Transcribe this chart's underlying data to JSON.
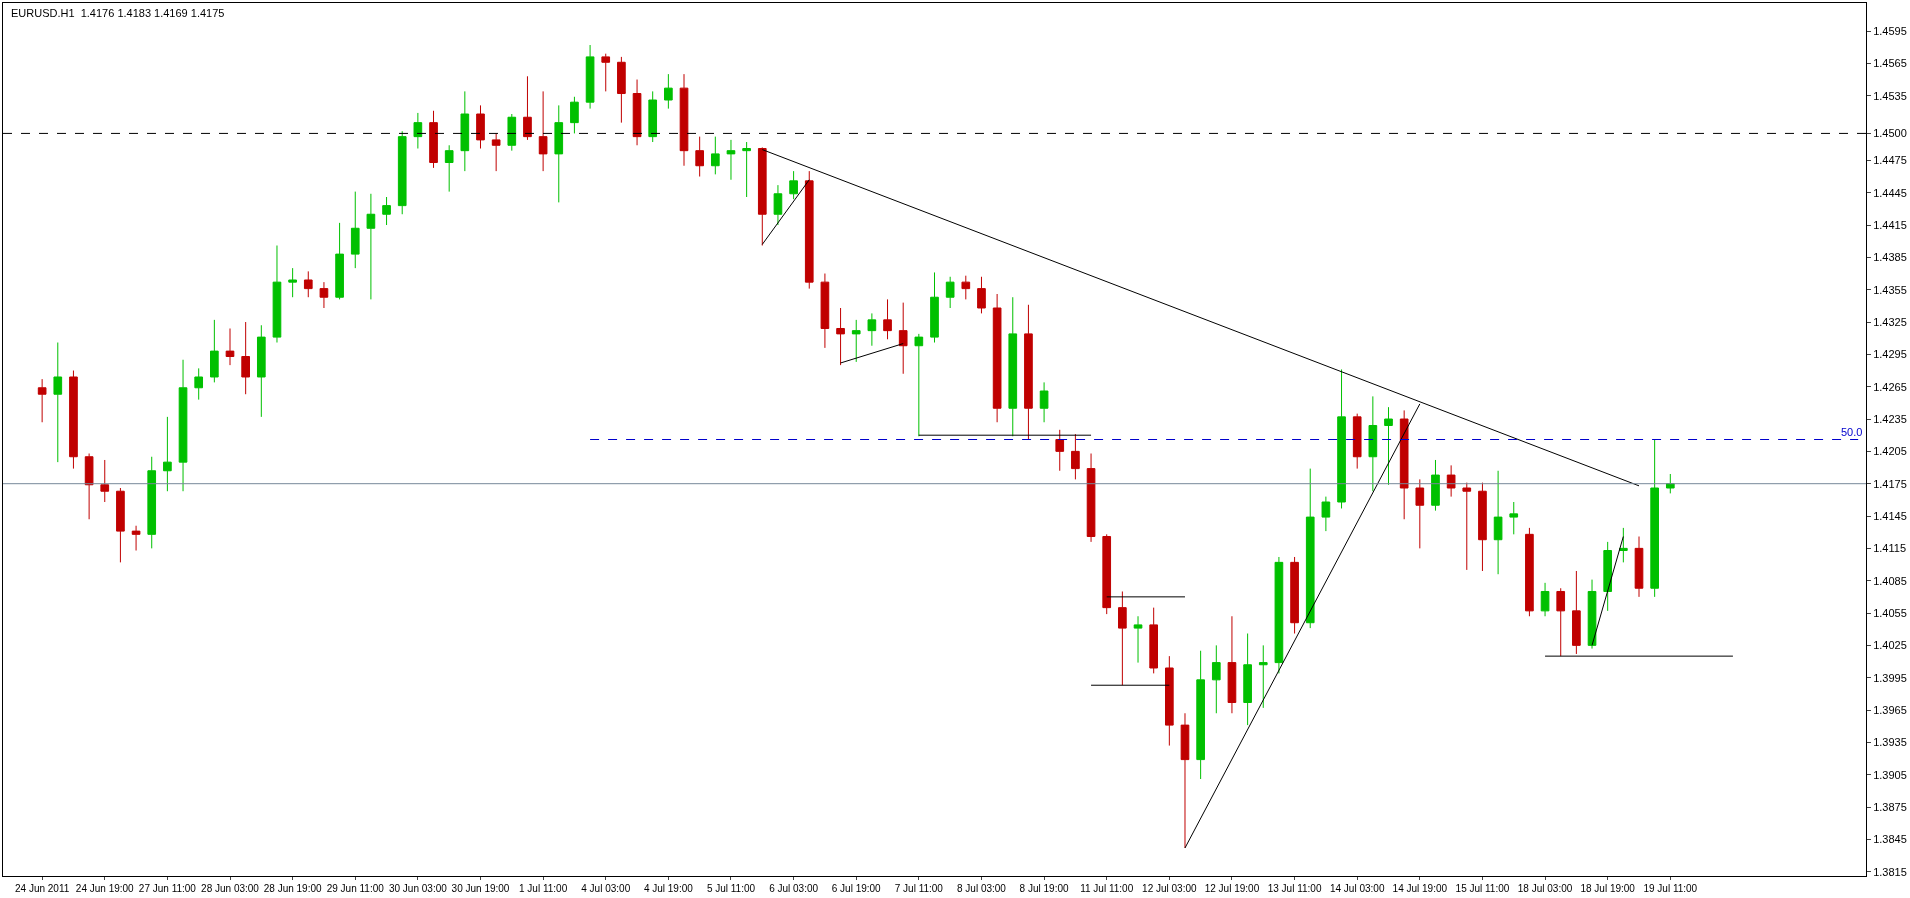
{
  "chart_data": {
    "type": "candlestick",
    "title": "EURUSD.H1  1.4176 1.4183 1.4169 1.4175",
    "categories": [
      "24 Jun 2011",
      null,
      null,
      null,
      "24 Jun 19:00",
      null,
      null,
      null,
      "27 Jun 11:00",
      null,
      null,
      null,
      "28 Jun 03:00",
      null,
      null,
      null,
      "28 Jun 19:00",
      null,
      null,
      null,
      "29 Jun 11:00",
      null,
      null,
      null,
      "30 Jun 03:00",
      null,
      null,
      null,
      "30 Jun 19:00",
      null,
      null,
      null,
      "1 Jul 11:00",
      null,
      null,
      null,
      "4 Jul 03:00",
      null,
      null,
      null,
      "4 Jul 19:00",
      null,
      null,
      null,
      "5 Jul 11:00",
      null,
      null,
      null,
      "6 Jul 03:00",
      null,
      null,
      null,
      "6 Jul 19:00",
      null,
      null,
      null,
      "7 Jul 11:00",
      null,
      null,
      null,
      "8 Jul 03:00",
      null,
      null,
      null,
      "8 Jul 19:00",
      null,
      null,
      null,
      "11 Jul 11:00",
      null,
      null,
      null,
      "12 Jul 03:00",
      null,
      null,
      null,
      "12 Jul 19:00",
      null,
      null,
      null,
      "13 Jul 11:00",
      null,
      null,
      null,
      "14 Jul 03:00",
      null,
      null,
      null,
      "14 Jul 19:00",
      null,
      null,
      null,
      "15 Jul 11:00",
      null,
      null,
      null,
      "18 Jul 03:00",
      null,
      null,
      null,
      "18 Jul 19:00",
      null,
      null,
      null,
      "19 Jul 11:00",
      null,
      null,
      null,
      null,
      null,
      null,
      null,
      null,
      null,
      null,
      null,
      null
    ],
    "ohlc": [
      [
        1.4264,
        1.4272,
        1.4232,
        1.4258
      ],
      [
        1.4258,
        1.4306,
        1.4195,
        1.4274
      ],
      [
        1.4274,
        1.428,
        1.4189,
        1.42
      ],
      [
        1.42,
        1.4203,
        1.4142,
        1.4174
      ],
      [
        1.4174,
        1.4197,
        1.4158,
        1.4168
      ],
      [
        1.4168,
        1.4171,
        1.4102,
        1.4131
      ],
      [
        1.4131,
        1.4136,
        1.4113,
        1.4128
      ],
      [
        1.4128,
        1.42,
        1.4115,
        1.4187
      ],
      [
        1.4187,
        1.4237,
        1.4168,
        1.4195
      ],
      [
        1.4195,
        1.429,
        1.4168,
        1.4264
      ],
      [
        1.4264,
        1.4282,
        1.4253,
        1.4274
      ],
      [
        1.4274,
        1.4327,
        1.4269,
        1.4298
      ],
      [
        1.4298,
        1.4319,
        1.4285,
        1.4293
      ],
      [
        1.4293,
        1.4325,
        1.4258,
        1.4274
      ],
      [
        1.4274,
        1.4322,
        1.4237,
        1.4311
      ],
      [
        1.4311,
        1.4396,
        1.4306,
        1.4362
      ],
      [
        1.4362,
        1.4375,
        1.4348,
        1.4364
      ],
      [
        1.4364,
        1.4372,
        1.4348,
        1.4356
      ],
      [
        1.4356,
        1.4362,
        1.4338,
        1.4348
      ],
      [
        1.4348,
        1.4417,
        1.4346,
        1.4388
      ],
      [
        1.4388,
        1.4446,
        1.4375,
        1.4412
      ],
      [
        1.4412,
        1.4444,
        1.4346,
        1.4425
      ],
      [
        1.4425,
        1.4441,
        1.4415,
        1.4433
      ],
      [
        1.4433,
        1.4502,
        1.4425,
        1.4497
      ],
      [
        1.4497,
        1.4519,
        1.4486,
        1.451
      ],
      [
        1.451,
        1.4521,
        1.4468,
        1.4473
      ],
      [
        1.4473,
        1.4489,
        1.4446,
        1.4484
      ],
      [
        1.4484,
        1.4539,
        1.4465,
        1.4518
      ],
      [
        1.4518,
        1.4526,
        1.4486,
        1.4494
      ],
      [
        1.4494,
        1.45,
        1.4465,
        1.4489
      ],
      [
        1.4489,
        1.4518,
        1.4484,
        1.4515
      ],
      [
        1.4515,
        1.4553,
        1.4494,
        1.4497
      ],
      [
        1.4497,
        1.4539,
        1.4465,
        1.4481
      ],
      [
        1.4481,
        1.4526,
        1.4436,
        1.451
      ],
      [
        1.451,
        1.4534,
        1.45,
        1.4529
      ],
      [
        1.4529,
        1.4582,
        1.4523,
        1.4571
      ],
      [
        1.4571,
        1.4574,
        1.4539,
        1.4566
      ],
      [
        1.4566,
        1.4571,
        1.451,
        1.4537
      ],
      [
        1.4537,
        1.455,
        1.4489,
        1.4497
      ],
      [
        1.4497,
        1.4539,
        1.4492,
        1.4531
      ],
      [
        1.4531,
        1.4555,
        1.4523,
        1.4542
      ],
      [
        1.4542,
        1.4555,
        1.447,
        1.4484
      ],
      [
        1.4484,
        1.4497,
        1.446,
        1.447
      ],
      [
        1.447,
        1.4497,
        1.4462,
        1.4481
      ],
      [
        1.4481,
        1.4494,
        1.4457,
        1.4484
      ],
      [
        1.4484,
        1.4492,
        1.4441,
        1.4486
      ],
      [
        1.4486,
        1.4487,
        1.4396,
        1.4425
      ],
      [
        1.4425,
        1.4452,
        1.4415,
        1.4444
      ],
      [
        1.4444,
        1.4465,
        1.4439,
        1.4456
      ],
      [
        1.4456,
        1.4465,
        1.4356,
        1.4362
      ],
      [
        1.4362,
        1.437,
        1.4301,
        1.4319
      ],
      [
        1.4319,
        1.4338,
        1.4285,
        1.4314
      ],
      [
        1.4314,
        1.4327,
        1.4288,
        1.4317
      ],
      [
        1.4317,
        1.4333,
        1.4303,
        1.4327
      ],
      [
        1.4327,
        1.4346,
        1.4309,
        1.4317
      ],
      [
        1.4317,
        1.4343,
        1.4277,
        1.4303
      ],
      [
        1.4303,
        1.4314,
        1.4219,
        1.4311
      ],
      [
        1.4311,
        1.4371,
        1.4306,
        1.4348
      ],
      [
        1.4348,
        1.4367,
        1.4338,
        1.4362
      ],
      [
        1.4362,
        1.4368,
        1.4346,
        1.4356
      ],
      [
        1.4356,
        1.4367,
        1.4333,
        1.4338
      ],
      [
        1.4338,
        1.4351,
        1.4232,
        1.4245
      ],
      [
        1.4245,
        1.4348,
        1.4219,
        1.4314
      ],
      [
        1.4314,
        1.4341,
        1.4216,
        1.4245
      ],
      [
        1.4245,
        1.4269,
        1.4232,
        1.4261
      ],
      [
        1.4216,
        1.4225,
        1.4187,
        1.4205
      ],
      [
        1.4205,
        1.4221,
        1.4179,
        1.4189
      ],
      [
        1.4189,
        1.4203,
        1.4121,
        1.4126
      ],
      [
        1.4126,
        1.4128,
        1.4054,
        1.406
      ],
      [
        1.406,
        1.4075,
        1.3988,
        1.4041
      ],
      [
        1.4041,
        1.4052,
        1.4009,
        1.4044
      ],
      [
        1.4044,
        1.406,
        1.3999,
        1.4004
      ],
      [
        1.4004,
        1.4015,
        1.3932,
        1.3951
      ],
      [
        1.3951,
        1.3962,
        1.3837,
        1.3919
      ],
      [
        1.3919,
        1.402,
        1.3901,
        1.3993
      ],
      [
        1.3993,
        1.4025,
        1.3962,
        1.4009
      ],
      [
        1.4009,
        1.4052,
        1.3962,
        1.3972
      ],
      [
        1.3972,
        1.4036,
        1.3951,
        1.4007
      ],
      [
        1.4007,
        1.4025,
        1.3967,
        1.4009
      ],
      [
        1.4009,
        1.4107,
        1.3999,
        1.4102
      ],
      [
        1.4102,
        1.4107,
        1.4036,
        1.4046
      ],
      [
        1.4046,
        1.4189,
        1.4041,
        1.4144
      ],
      [
        1.4144,
        1.4163,
        1.4131,
        1.4158
      ],
      [
        1.4158,
        1.4281,
        1.4152,
        1.4237
      ],
      [
        1.4237,
        1.424,
        1.4189,
        1.42
      ],
      [
        1.42,
        1.4256,
        1.4168,
        1.4229
      ],
      [
        1.4229,
        1.4246,
        1.4174,
        1.4235
      ],
      [
        1.4235,
        1.4243,
        1.4142,
        1.4171
      ],
      [
        1.4171,
        1.4179,
        1.4115,
        1.4155
      ],
      [
        1.4155,
        1.4197,
        1.415,
        1.4183
      ],
      [
        1.4183,
        1.4192,
        1.4163,
        1.4171
      ],
      [
        1.4171,
        1.4176,
        1.4095,
        1.4168
      ],
      [
        1.4168,
        1.4176,
        1.4094,
        1.4123
      ],
      [
        1.4123,
        1.4187,
        1.4091,
        1.4144
      ],
      [
        1.4144,
        1.4158,
        1.4128,
        1.4147
      ],
      [
        1.4128,
        1.4134,
        1.4052,
        1.4057
      ],
      [
        1.4057,
        1.4083,
        1.4052,
        1.4075
      ],
      [
        1.4075,
        1.4078,
        1.4015,
        1.4057
      ],
      [
        1.4057,
        1.4094,
        1.4017,
        1.4025
      ],
      [
        1.4025,
        1.4086,
        1.4022,
        1.4075
      ],
      [
        1.4075,
        1.4121,
        1.4057,
        1.4113
      ],
      [
        1.4113,
        1.4134,
        1.4102,
        1.4115
      ],
      [
        1.4115,
        1.4126,
        1.407,
        1.4078
      ],
      [
        1.4078,
        1.4216,
        1.407,
        1.4171
      ],
      [
        1.4171,
        1.4184,
        1.4166,
        1.4175
      ],
      null,
      null,
      null,
      null,
      null,
      null,
      null,
      null,
      null,
      null,
      null,
      null
    ],
    "colors": [
      "#c00000",
      "#00c000",
      "#c00000",
      "#c00000",
      "#c00000",
      "#c00000",
      "#c00000",
      "#00c000",
      "#00c000",
      "#00c000",
      "#00c000",
      "#00c000",
      "#c00000",
      "#c00000",
      "#00c000",
      "#00c000",
      "#00c000",
      "#c00000",
      "#c00000",
      "#00c000",
      "#00c000",
      "#00c000",
      "#00c000",
      "#00c000",
      "#00c000",
      "#c00000",
      "#00c000",
      "#00c000",
      "#c00000",
      "#c00000",
      "#00c000",
      "#c00000",
      "#c00000",
      "#00c000",
      "#00c000",
      "#00c000",
      "#c00000",
      "#c00000",
      "#c00000",
      "#00c000",
      "#00c000",
      "#c00000",
      "#c00000",
      "#00c000",
      "#00c000",
      "#00c000",
      "#c00000",
      "#00c000",
      "#00c000",
      "#c00000",
      "#c00000",
      "#c00000",
      "#00c000",
      "#00c000",
      "#c00000",
      "#c00000",
      "#00c000",
      "#00c000",
      "#00c000",
      "#c00000",
      "#c00000",
      "#c00000",
      "#00c000",
      "#c00000",
      "#00c000",
      "#c00000",
      "#c00000",
      "#c00000",
      "#c00000",
      "#c00000",
      "#00c000",
      "#c00000",
      "#c00000",
      "#c00000",
      "#00c000",
      "#00c000",
      "#c00000",
      "#00c000",
      "#00c000",
      "#00c000",
      "#c00000",
      "#00c000",
      "#00c000",
      "#00c000",
      "#c00000",
      "#00c000",
      "#00c000",
      "#c00000",
      "#c00000",
      "#00c000",
      "#c00000",
      "#c00000",
      "#c00000",
      "#00c000",
      "#00c000",
      "#c00000",
      "#00c000",
      "#c00000",
      "#c00000",
      "#00c000",
      "#00c000",
      "#00c000",
      "#c00000",
      "#00c000",
      "#00c000",
      null,
      null,
      null,
      null,
      null,
      null,
      null,
      null,
      null,
      null,
      null,
      null
    ],
    "series": [
      {
        "type": "line",
        "color": "#000000",
        "values": [
          null,
          null,
          null,
          null,
          null,
          null,
          null,
          null,
          null,
          null,
          null,
          null,
          null,
          null,
          null,
          null,
          null,
          null,
          null,
          null,
          null,
          null,
          null,
          null,
          null,
          null,
          null,
          null,
          null,
          null,
          null,
          null,
          null,
          null,
          null,
          null,
          null,
          null,
          null,
          null,
          null,
          null,
          null,
          null,
          null,
          null,
          1.4485,
          null,
          null,
          null,
          null,
          null,
          null,
          null,
          null,
          null,
          null,
          null,
          null,
          null,
          null,
          null,
          null,
          null,
          null,
          null,
          null,
          null,
          null,
          null,
          null,
          null,
          null,
          null,
          null,
          null,
          null,
          null,
          null,
          null,
          null,
          null,
          null,
          null,
          null,
          null,
          null,
          null,
          null,
          null,
          null,
          null,
          null,
          null,
          null,
          null,
          null,
          null,
          null,
          null,
          null,
          null,
          1.4173,
          null,
          null,
          null,
          null,
          null,
          null,
          null,
          null,
          null,
          null,
          null,
          null,
          null,
          null
        ]
      },
      {
        "type": "line",
        "color": "#000000",
        "values": [
          null,
          null,
          null,
          null,
          null,
          null,
          null,
          null,
          null,
          null,
          null,
          null,
          null,
          null,
          null,
          null,
          null,
          null,
          null,
          null,
          null,
          null,
          null,
          null,
          null,
          null,
          null,
          null,
          null,
          null,
          null,
          null,
          null,
          null,
          null,
          null,
          null,
          null,
          null,
          null,
          null,
          null,
          null,
          null,
          null,
          null,
          1.4397,
          null,
          null,
          1.4457,
          null,
          null,
          null,
          null,
          null,
          null,
          null,
          null,
          null,
          null,
          null,
          null,
          null,
          null,
          null,
          null,
          null,
          null,
          null,
          null,
          null,
          null,
          null,
          null,
          null,
          null,
          null,
          null,
          null,
          null,
          null,
          null,
          null,
          null,
          null,
          null,
          null,
          null,
          null,
          null,
          null,
          null,
          null,
          null,
          null,
          null,
          null,
          null,
          null,
          null,
          null,
          null,
          null,
          null,
          null,
          null,
          null,
          null,
          null,
          null,
          null,
          null,
          null,
          null,
          null,
          null,
          null
        ]
      },
      {
        "type": "line",
        "color": "#000000",
        "values": [
          null,
          null,
          null,
          null,
          null,
          null,
          null,
          null,
          null,
          null,
          null,
          null,
          null,
          null,
          null,
          null,
          null,
          null,
          null,
          null,
          null,
          null,
          null,
          null,
          null,
          null,
          null,
          null,
          null,
          null,
          null,
          null,
          null,
          null,
          null,
          null,
          null,
          null,
          null,
          null,
          null,
          null,
          null,
          null,
          null,
          null,
          null,
          null,
          null,
          null,
          null,
          1.4287,
          null,
          null,
          null,
          1.4305,
          null,
          null,
          null,
          null,
          null,
          null,
          null,
          null,
          null,
          null,
          null,
          null,
          null,
          null,
          null,
          null,
          null,
          null,
          null,
          null,
          null,
          null,
          null,
          null,
          null,
          null,
          null,
          null,
          null,
          null,
          null,
          null,
          null,
          null,
          null,
          null,
          null,
          null,
          null,
          null,
          null,
          null,
          null,
          null,
          null,
          null,
          null,
          null,
          null,
          null,
          null,
          null,
          null,
          null,
          null,
          null,
          null,
          null,
          null,
          null,
          null
        ]
      },
      {
        "type": "line",
        "color": "#000000",
        "values": [
          null,
          null,
          null,
          null,
          null,
          null,
          null,
          null,
          null,
          null,
          null,
          null,
          null,
          null,
          null,
          null,
          null,
          null,
          null,
          null,
          null,
          null,
          null,
          null,
          null,
          null,
          null,
          null,
          null,
          null,
          null,
          null,
          null,
          null,
          null,
          null,
          null,
          null,
          null,
          null,
          null,
          null,
          null,
          null,
          null,
          null,
          null,
          null,
          null,
          null,
          null,
          null,
          null,
          null,
          null,
          null,
          1.422,
          null,
          null,
          null,
          null,
          null,
          null,
          null,
          null,
          null,
          null,
          1.422,
          null,
          null,
          null,
          null,
          null,
          null,
          null,
          null,
          null,
          null,
          null,
          null,
          null,
          null,
          null,
          null,
          null,
          null,
          null,
          null,
          null,
          null,
          null,
          null,
          null,
          null,
          null,
          null,
          null,
          null,
          null,
          null,
          null,
          null,
          null,
          null,
          null,
          null,
          null,
          null,
          null,
          null,
          null,
          null,
          null,
          null,
          null,
          null,
          null
        ]
      },
      {
        "type": "line",
        "color": "#000000",
        "values": [
          null,
          null,
          null,
          null,
          null,
          null,
          null,
          null,
          null,
          null,
          null,
          null,
          null,
          null,
          null,
          null,
          null,
          null,
          null,
          null,
          null,
          null,
          null,
          null,
          null,
          null,
          null,
          null,
          null,
          null,
          null,
          null,
          null,
          null,
          null,
          null,
          null,
          null,
          null,
          null,
          null,
          null,
          null,
          null,
          null,
          null,
          null,
          null,
          null,
          null,
          null,
          null,
          null,
          null,
          null,
          null,
          null,
          null,
          null,
          null,
          null,
          null,
          null,
          null,
          null,
          null,
          null,
          null,
          1.407,
          null,
          null,
          null,
          null,
          1.407,
          null,
          null,
          null,
          null,
          null,
          null,
          null,
          null,
          null,
          null,
          null,
          null,
          null,
          null,
          null,
          null,
          null,
          null,
          null,
          null,
          null,
          null,
          null,
          null,
          null,
          null,
          null,
          null,
          null,
          null,
          null,
          null,
          null,
          null,
          null,
          null,
          null,
          null,
          null,
          null,
          null,
          null,
          null
        ]
      },
      {
        "type": "line",
        "color": "#000000",
        "values": [
          null,
          null,
          null,
          null,
          null,
          null,
          null,
          null,
          null,
          null,
          null,
          null,
          null,
          null,
          null,
          null,
          null,
          null,
          null,
          null,
          null,
          null,
          null,
          null,
          null,
          null,
          null,
          null,
          null,
          null,
          null,
          null,
          null,
          null,
          null,
          null,
          null,
          null,
          null,
          null,
          null,
          null,
          null,
          null,
          null,
          null,
          null,
          null,
          null,
          null,
          null,
          null,
          null,
          null,
          null,
          null,
          null,
          null,
          null,
          null,
          null,
          null,
          null,
          null,
          null,
          null,
          null,
          1.3988,
          null,
          null,
          null,
          null,
          1.3988,
          null,
          null,
          null,
          null,
          null,
          null,
          null,
          null,
          null,
          null,
          null,
          null,
          null,
          null,
          null,
          null,
          null,
          null,
          null,
          null,
          null,
          null,
          null,
          null,
          null,
          null,
          null,
          null,
          null,
          null,
          null,
          null,
          null,
          null,
          null,
          null,
          null,
          null,
          null,
          null,
          null,
          null,
          null,
          null
        ]
      },
      {
        "type": "line",
        "color": "#000000",
        "values": [
          null,
          null,
          null,
          null,
          null,
          null,
          null,
          null,
          null,
          null,
          null,
          null,
          null,
          null,
          null,
          null,
          null,
          null,
          null,
          null,
          null,
          null,
          null,
          null,
          null,
          null,
          null,
          null,
          null,
          null,
          null,
          null,
          null,
          null,
          null,
          null,
          null,
          null,
          null,
          null,
          null,
          null,
          null,
          null,
          null,
          null,
          null,
          null,
          null,
          null,
          null,
          null,
          null,
          null,
          null,
          null,
          null,
          null,
          null,
          null,
          null,
          null,
          null,
          null,
          null,
          null,
          null,
          null,
          null,
          null,
          null,
          null,
          null,
          1.3837,
          null,
          null,
          null,
          null,
          null,
          null,
          null,
          null,
          null,
          null,
          null,
          null,
          null,
          null,
          1.4249,
          null,
          null,
          null,
          null,
          null,
          null,
          null,
          null,
          null,
          null,
          null,
          null,
          null,
          null,
          null,
          null,
          null,
          null,
          null,
          null,
          null,
          null,
          null,
          null,
          null,
          null,
          null,
          null
        ]
      },
      {
        "type": "line",
        "color": "#000000",
        "values": [
          null,
          null,
          null,
          null,
          null,
          null,
          null,
          null,
          null,
          null,
          null,
          null,
          null,
          null,
          null,
          null,
          null,
          null,
          null,
          null,
          null,
          null,
          null,
          null,
          null,
          null,
          null,
          null,
          null,
          null,
          null,
          null,
          null,
          null,
          null,
          null,
          null,
          null,
          null,
          null,
          null,
          null,
          null,
          null,
          null,
          null,
          null,
          null,
          null,
          null,
          null,
          null,
          null,
          null,
          null,
          null,
          null,
          null,
          null,
          null,
          null,
          null,
          null,
          null,
          null,
          null,
          null,
          null,
          null,
          null,
          null,
          null,
          null,
          null,
          null,
          null,
          null,
          null,
          null,
          null,
          null,
          null,
          null,
          null,
          null,
          null,
          null,
          null,
          null,
          null,
          null,
          null,
          null,
          null,
          null,
          null,
          1.4015,
          null,
          null,
          null,
          null,
          null,
          null,
          null,
          null,
          null,
          null,
          null,
          1.4015,
          null,
          null,
          null,
          null,
          null,
          null,
          null,
          null
        ]
      },
      {
        "type": "line",
        "color": "#000000",
        "values": [
          null,
          null,
          null,
          null,
          null,
          null,
          null,
          null,
          null,
          null,
          null,
          null,
          null,
          null,
          null,
          null,
          null,
          null,
          null,
          null,
          null,
          null,
          null,
          null,
          null,
          null,
          null,
          null,
          null,
          null,
          null,
          null,
          null,
          null,
          null,
          null,
          null,
          null,
          null,
          null,
          null,
          null,
          null,
          null,
          null,
          null,
          null,
          null,
          null,
          null,
          null,
          null,
          null,
          null,
          null,
          null,
          null,
          null,
          null,
          null,
          null,
          null,
          null,
          null,
          null,
          null,
          null,
          null,
          null,
          null,
          null,
          null,
          null,
          null,
          null,
          null,
          null,
          null,
          null,
          null,
          null,
          null,
          null,
          null,
          null,
          null,
          null,
          null,
          null,
          null,
          null,
          null,
          null,
          null,
          null,
          null,
          null,
          null,
          null,
          1.4025,
          null,
          1.4126,
          null,
          null,
          null,
          null,
          null,
          null,
          null,
          null,
          null,
          null,
          null,
          null,
          null,
          null,
          null
        ]
      },
      {
        "type": "line",
        "color": "#0000cc",
        "line_style": "dashed",
        "values": [
          null,
          null,
          null,
          null,
          null,
          null,
          null,
          null,
          null,
          null,
          null,
          null,
          null,
          null,
          null,
          null,
          null,
          null,
          null,
          null,
          null,
          null,
          null,
          null,
          null,
          null,
          null,
          null,
          null,
          null,
          null,
          null,
          null,
          null,
          null,
          1.4216,
          null,
          null,
          null,
          null,
          null,
          null,
          null,
          null,
          null,
          null,
          null,
          null,
          null,
          null,
          null,
          null,
          null,
          null,
          null,
          null,
          null,
          null,
          null,
          null,
          null,
          null,
          null,
          null,
          null,
          null,
          null,
          null,
          null,
          null,
          null,
          null,
          null,
          null,
          null,
          null,
          null,
          null,
          null,
          null,
          null,
          null,
          null,
          null,
          null,
          null,
          null,
          null,
          null,
          null,
          null,
          null,
          null,
          null,
          null,
          null,
          null,
          null,
          null,
          null,
          null,
          null,
          null,
          null,
          null,
          null,
          null,
          null,
          null,
          null,
          null,
          null,
          null,
          null,
          null,
          null,
          1.4216
        ]
      }
    ],
    "annotations": [
      {
        "text": "50.0",
        "y": 1.4216
      }
    ],
    "ref_lines": [
      {
        "axis": "y",
        "value": 1.45,
        "color": "#000000",
        "line_style": "dashed"
      },
      {
        "axis": "y",
        "value": 1.4175,
        "color": "#778899",
        "line_style": "solid"
      }
    ],
    "ylim": [
      1.3811,
      1.4621
    ],
    "yticks": [
      1.3815,
      1.3845,
      1.3875,
      1.3905,
      1.3935,
      1.3965,
      1.3995,
      1.4025,
      1.4055,
      1.4085,
      1.4115,
      1.4145,
      1.4175,
      1.4205,
      1.4235,
      1.4265,
      1.4295,
      1.4325,
      1.4355,
      1.4385,
      1.4415,
      1.4445,
      1.4475,
      {
        "value": 1.45,
        "label": "1.4500"
      },
      1.4535,
      1.4565,
      1.4595
    ]
  }
}
